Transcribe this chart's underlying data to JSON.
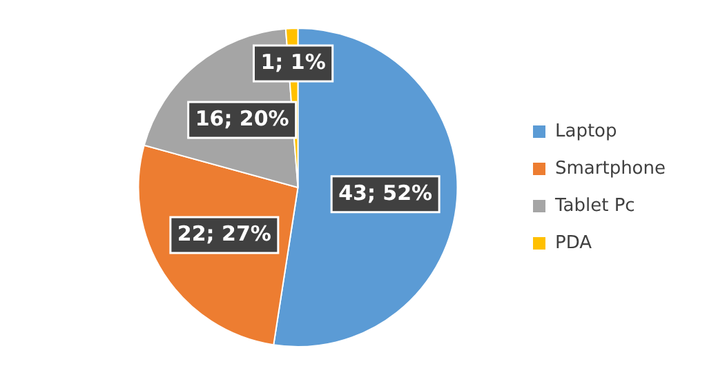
{
  "chart_data": {
    "type": "pie",
    "categories": [
      "Laptop",
      "Smartphone",
      "Tablet Pc",
      "PDA"
    ],
    "values": [
      43,
      22,
      16,
      1
    ],
    "colors": [
      "#5b9bd5",
      "#ed7d31",
      "#a5a5a5",
      "#ffc000"
    ],
    "value_labels": [
      "43; 52%",
      "22; 27%",
      "16; 20%",
      "1; 1%"
    ],
    "legend": "right"
  }
}
